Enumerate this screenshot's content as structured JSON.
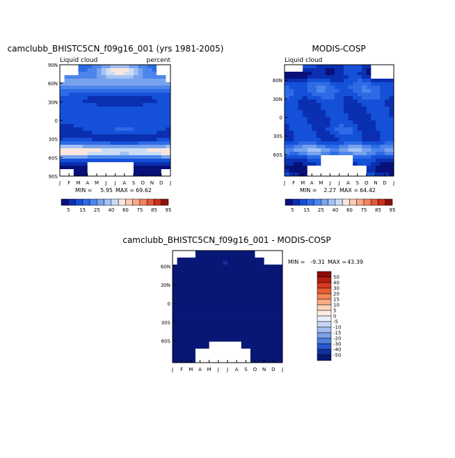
{
  "months": [
    "J",
    "F",
    "M",
    "A",
    "M",
    "J",
    "J",
    "A",
    "S",
    "O",
    "N",
    "D",
    "J"
  ],
  "lat_ticks": [
    "90N",
    "60N",
    "30N",
    "0",
    "30S",
    "60S",
    "90S"
  ],
  "lat_ticks_short": [
    "60N",
    "30N",
    "0",
    "30S",
    "60S"
  ],
  "chart_data": [
    {
      "type": "heatmap",
      "id": "model",
      "title": "camclubb_BHISTC5CN_f09g16_001 (yrs 1981-2005)",
      "left_label": "Liquid cloud",
      "right_label": "percent",
      "xlabel": "",
      "ylabel": "",
      "min_label": "MIN =",
      "min_value": "5.95",
      "max_label": "MAX =",
      "max_value": "69.62",
      "colorbar_ticks": [
        "5",
        "15",
        "25",
        "40",
        "60",
        "75",
        "85",
        "95"
      ]
    },
    {
      "type": "heatmap",
      "id": "obs",
      "title": "MODIS-COSP",
      "left_label": "Liquid cloud",
      "min_label": "MIN =",
      "min_value": "2.27",
      "max_label": "MAX =",
      "max_value": "64.42",
      "colorbar_ticks": [
        "5",
        "15",
        "25",
        "40",
        "60",
        "75",
        "85",
        "95"
      ]
    },
    {
      "type": "heatmap",
      "id": "diff",
      "title": "camclubb_BHISTC5CN_f09g16_001 - MODIS-COSP",
      "min_label": "MIN =",
      "min_value": "-9.31",
      "max_label": "MAX =",
      "max_value": "43.39",
      "colorbar_ticks": [
        "50",
        "40",
        "30",
        "20",
        "15",
        "10",
        "5",
        "0",
        "-5",
        "-10",
        "-15",
        "-20",
        "-30",
        "-40",
        "-50"
      ]
    }
  ],
  "colors": {
    "seq": [
      "#08107a",
      "#0a2fb0",
      "#1450d8",
      "#2d6be6",
      "#4d85ea",
      "#77a3ee",
      "#a3c2f3",
      "#cbdcf6",
      "#fbe6dd",
      "#fcc9b4",
      "#f9a88a",
      "#f28460",
      "#e6553a",
      "#c8301e",
      "#8e0f0a"
    ],
    "div": [
      "#8a0c08",
      "#b51f12",
      "#d63a1e",
      "#ea5e34",
      "#f48658",
      "#f9ab86",
      "#fcd2bb",
      "#fdeee4",
      "#e8eefb",
      "#c6d6f5",
      "#a2bdef",
      "#7aa0e8",
      "#4f7edf",
      "#2a57d0",
      "#12309f",
      "#081775"
    ]
  }
}
